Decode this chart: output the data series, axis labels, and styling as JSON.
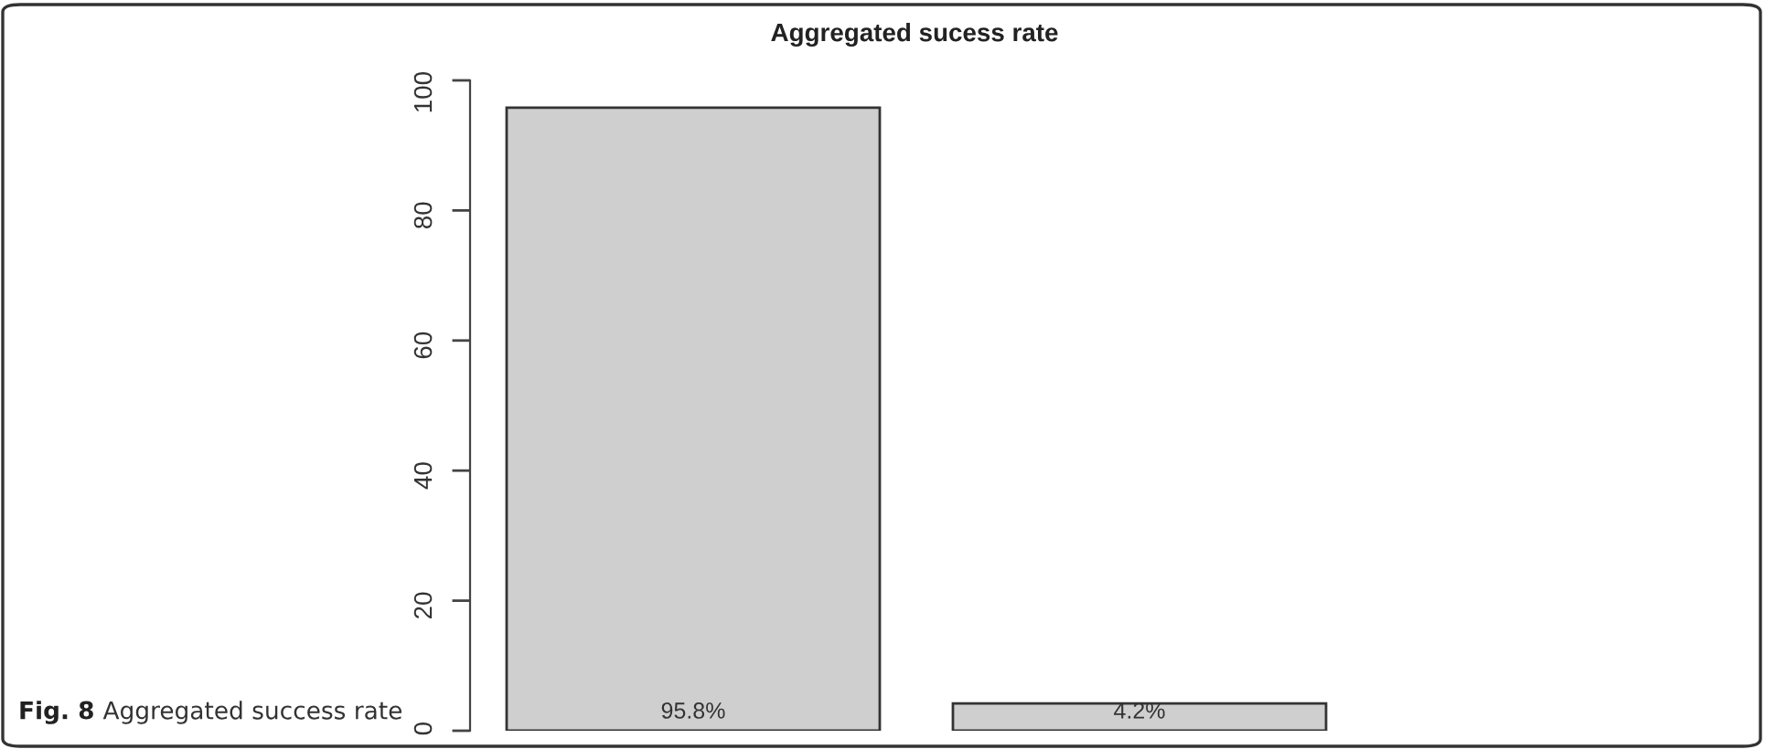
{
  "chart_data": {
    "type": "bar",
    "title": "Aggregated sucess rate",
    "categories": [
      null,
      null
    ],
    "values": [
      95.8,
      4.2
    ],
    "color": "#cfcfcf",
    "value_labels": [
      "95.8%",
      "4.2%"
    ],
    "ylim": [
      0,
      100
    ],
    "yticks": [
      0,
      20,
      40,
      60,
      80,
      100
    ],
    "annotations": [
      "Fig. 8",
      "Aggregated success rate"
    ]
  }
}
